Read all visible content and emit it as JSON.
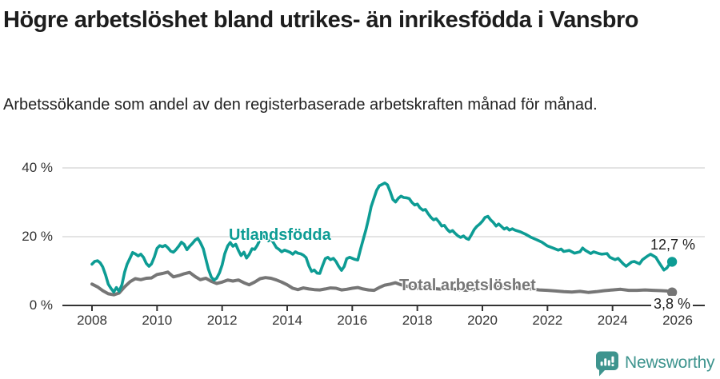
{
  "header": {
    "title": "Högre arbetslöshet bland utrikes- än inrikesfödda i Vansbro",
    "subtitle": "Arbetssökande som andel av den registerbaserade arbetskraften månad för månad."
  },
  "footer": {
    "brand": "Newsworthy",
    "logo_icon": "newsworthy-speech-bubble-bar-chart-icon",
    "brand_color": "#3e948e"
  },
  "colors": {
    "foreign_born_line": "#0d9c94",
    "total_line": "#767676",
    "grid": "#dcdcdc",
    "axis": "#333333",
    "title_text": "#1d1d1d",
    "tick_text": "#333333"
  },
  "chart_data": {
    "type": "line",
    "title": "Högre arbetslöshet bland utrikes- än inrikesfödda i Vansbro",
    "subtitle": "Arbetssökande som andel av den registerbaserade arbetskraften månad för månad.",
    "xlabel": "",
    "ylabel": "",
    "grid": "horizontal-only",
    "xlim": [
      2007.1,
      2026.8
    ],
    "ylim": [
      0,
      43
    ],
    "y_ticks": [
      0,
      20,
      40
    ],
    "y_tick_labels": [
      "0 %",
      "20 %",
      "40 %"
    ],
    "x_ticks": [
      2008,
      2010,
      2012,
      2014,
      2016,
      2018,
      2020,
      2022,
      2024,
      2026
    ],
    "x_tick_labels": [
      "2008",
      "2010",
      "2012",
      "2014",
      "2016",
      "2018",
      "2020",
      "2022",
      "2024",
      "2026"
    ],
    "legend_position": "inline-labels-on-lines",
    "series": [
      {
        "name": "Utlandsfödda",
        "color": "#0d9c94",
        "end_label": "12,7 %",
        "end_value": 12.7,
        "points": [
          [
            2008.0,
            12.0
          ],
          [
            2008.08,
            12.8
          ],
          [
            2008.17,
            13.0
          ],
          [
            2008.25,
            12.4
          ],
          [
            2008.33,
            11.2
          ],
          [
            2008.42,
            8.8
          ],
          [
            2008.5,
            6.2
          ],
          [
            2008.58,
            5.0
          ],
          [
            2008.67,
            3.9
          ],
          [
            2008.75,
            5.2
          ],
          [
            2008.83,
            4.1
          ],
          [
            2008.92,
            6.0
          ],
          [
            2009.0,
            9.6
          ],
          [
            2009.08,
            12.0
          ],
          [
            2009.17,
            13.8
          ],
          [
            2009.25,
            15.4
          ],
          [
            2009.33,
            15.0
          ],
          [
            2009.42,
            14.4
          ],
          [
            2009.5,
            14.9
          ],
          [
            2009.58,
            14.0
          ],
          [
            2009.67,
            12.2
          ],
          [
            2009.75,
            11.4
          ],
          [
            2009.83,
            12.1
          ],
          [
            2009.92,
            14.2
          ],
          [
            2010.0,
            16.6
          ],
          [
            2010.08,
            17.4
          ],
          [
            2010.17,
            17.1
          ],
          [
            2010.25,
            17.5
          ],
          [
            2010.33,
            16.8
          ],
          [
            2010.42,
            15.8
          ],
          [
            2010.5,
            15.5
          ],
          [
            2010.58,
            16.2
          ],
          [
            2010.67,
            17.3
          ],
          [
            2010.75,
            18.4
          ],
          [
            2010.83,
            17.8
          ],
          [
            2010.92,
            16.2
          ],
          [
            2011.0,
            17.2
          ],
          [
            2011.08,
            18.0
          ],
          [
            2011.17,
            19.0
          ],
          [
            2011.25,
            19.5
          ],
          [
            2011.33,
            18.3
          ],
          [
            2011.42,
            16.5
          ],
          [
            2011.5,
            13.5
          ],
          [
            2011.58,
            10.5
          ],
          [
            2011.67,
            8.2
          ],
          [
            2011.75,
            7.4
          ],
          [
            2011.83,
            7.9
          ],
          [
            2011.92,
            9.5
          ],
          [
            2012.0,
            11.8
          ],
          [
            2012.08,
            15.0
          ],
          [
            2012.17,
            17.3
          ],
          [
            2012.25,
            18.3
          ],
          [
            2012.33,
            17.2
          ],
          [
            2012.42,
            17.8
          ],
          [
            2012.5,
            16.0
          ],
          [
            2012.58,
            14.5
          ],
          [
            2012.67,
            15.5
          ],
          [
            2012.75,
            13.8
          ],
          [
            2012.83,
            14.8
          ],
          [
            2012.92,
            16.5
          ],
          [
            2013.0,
            16.3
          ],
          [
            2013.08,
            17.5
          ],
          [
            2013.17,
            19.2
          ],
          [
            2013.25,
            20.3
          ],
          [
            2013.33,
            19.6
          ],
          [
            2013.42,
            18.8
          ],
          [
            2013.5,
            19.4
          ],
          [
            2013.58,
            18.2
          ],
          [
            2013.67,
            16.8
          ],
          [
            2013.75,
            16.3
          ],
          [
            2013.83,
            15.6
          ],
          [
            2013.92,
            16.1
          ],
          [
            2014.0,
            15.8
          ],
          [
            2014.08,
            15.5
          ],
          [
            2014.17,
            14.9
          ],
          [
            2014.25,
            15.6
          ],
          [
            2014.33,
            15.2
          ],
          [
            2014.42,
            15.0
          ],
          [
            2014.5,
            14.6
          ],
          [
            2014.58,
            13.9
          ],
          [
            2014.67,
            11.5
          ],
          [
            2014.75,
            9.9
          ],
          [
            2014.83,
            10.3
          ],
          [
            2014.92,
            9.4
          ],
          [
            2015.0,
            9.3
          ],
          [
            2015.08,
            11.4
          ],
          [
            2015.17,
            13.6
          ],
          [
            2015.25,
            14.0
          ],
          [
            2015.33,
            13.3
          ],
          [
            2015.42,
            13.7
          ],
          [
            2015.5,
            12.8
          ],
          [
            2015.58,
            11.4
          ],
          [
            2015.67,
            10.2
          ],
          [
            2015.75,
            11.3
          ],
          [
            2015.83,
            13.6
          ],
          [
            2015.92,
            14.0
          ],
          [
            2016.0,
            13.7
          ],
          [
            2016.08,
            13.4
          ],
          [
            2016.17,
            13.2
          ],
          [
            2016.25,
            16.2
          ],
          [
            2016.33,
            19.0
          ],
          [
            2016.42,
            22.0
          ],
          [
            2016.5,
            25.2
          ],
          [
            2016.58,
            28.7
          ],
          [
            2016.67,
            31.3
          ],
          [
            2016.75,
            33.5
          ],
          [
            2016.83,
            34.8
          ],
          [
            2016.92,
            35.2
          ],
          [
            2017.0,
            35.6
          ],
          [
            2017.08,
            35.1
          ],
          [
            2017.17,
            33.0
          ],
          [
            2017.25,
            30.8
          ],
          [
            2017.33,
            30.1
          ],
          [
            2017.42,
            31.2
          ],
          [
            2017.5,
            31.8
          ],
          [
            2017.58,
            31.4
          ],
          [
            2017.67,
            31.3
          ],
          [
            2017.75,
            31.1
          ],
          [
            2017.83,
            30.0
          ],
          [
            2017.92,
            29.2
          ],
          [
            2018.0,
            29.5
          ],
          [
            2018.08,
            28.4
          ],
          [
            2018.17,
            27.7
          ],
          [
            2018.25,
            27.9
          ],
          [
            2018.33,
            26.7
          ],
          [
            2018.42,
            25.6
          ],
          [
            2018.5,
            24.9
          ],
          [
            2018.58,
            25.2
          ],
          [
            2018.67,
            24.2
          ],
          [
            2018.75,
            23.1
          ],
          [
            2018.83,
            23.3
          ],
          [
            2018.92,
            22.1
          ],
          [
            2019.0,
            21.4
          ],
          [
            2019.08,
            21.8
          ],
          [
            2019.17,
            20.9
          ],
          [
            2019.25,
            20.2
          ],
          [
            2019.33,
            19.8
          ],
          [
            2019.42,
            20.2
          ],
          [
            2019.5,
            19.5
          ],
          [
            2019.58,
            19.2
          ],
          [
            2019.67,
            20.7
          ],
          [
            2019.75,
            22.1
          ],
          [
            2019.83,
            23.0
          ],
          [
            2019.92,
            23.7
          ],
          [
            2020.0,
            24.5
          ],
          [
            2020.08,
            25.6
          ],
          [
            2020.17,
            25.9
          ],
          [
            2020.25,
            24.9
          ],
          [
            2020.33,
            24.2
          ],
          [
            2020.42,
            23.1
          ],
          [
            2020.5,
            23.7
          ],
          [
            2020.58,
            23.0
          ],
          [
            2020.67,
            22.2
          ],
          [
            2020.75,
            22.6
          ],
          [
            2020.83,
            21.9
          ],
          [
            2020.92,
            22.3
          ],
          [
            2021.0,
            21.9
          ],
          [
            2021.17,
            21.4
          ],
          [
            2021.33,
            20.7
          ],
          [
            2021.5,
            19.8
          ],
          [
            2021.67,
            19.1
          ],
          [
            2021.83,
            18.4
          ],
          [
            2022.0,
            17.3
          ],
          [
            2022.17,
            16.7
          ],
          [
            2022.33,
            16.1
          ],
          [
            2022.42,
            16.4
          ],
          [
            2022.5,
            15.7
          ],
          [
            2022.67,
            16.0
          ],
          [
            2022.83,
            15.2
          ],
          [
            2023.0,
            15.6
          ],
          [
            2023.08,
            16.7
          ],
          [
            2023.17,
            16.0
          ],
          [
            2023.33,
            15.1
          ],
          [
            2023.42,
            15.6
          ],
          [
            2023.58,
            15.1
          ],
          [
            2023.67,
            14.9
          ],
          [
            2023.83,
            15.1
          ],
          [
            2023.92,
            14.0
          ],
          [
            2024.08,
            13.3
          ],
          [
            2024.17,
            13.7
          ],
          [
            2024.33,
            12.1
          ],
          [
            2024.42,
            11.4
          ],
          [
            2024.58,
            12.6
          ],
          [
            2024.67,
            12.8
          ],
          [
            2024.83,
            12.1
          ],
          [
            2024.92,
            13.3
          ],
          [
            2025.08,
            14.4
          ],
          [
            2025.17,
            14.9
          ],
          [
            2025.33,
            14.0
          ],
          [
            2025.42,
            12.6
          ],
          [
            2025.58,
            10.3
          ],
          [
            2025.67,
            10.9
          ],
          [
            2025.75,
            12.0
          ],
          [
            2025.83,
            12.7
          ]
        ]
      },
      {
        "name": "Total arbetslöshet",
        "color": "#767676",
        "end_label": "3,8 %",
        "end_value": 3.8,
        "points": [
          [
            2008.0,
            6.2
          ],
          [
            2008.17,
            5.4
          ],
          [
            2008.33,
            4.3
          ],
          [
            2008.5,
            3.4
          ],
          [
            2008.67,
            3.1
          ],
          [
            2008.83,
            3.6
          ],
          [
            2009.0,
            5.4
          ],
          [
            2009.17,
            6.9
          ],
          [
            2009.33,
            7.8
          ],
          [
            2009.5,
            7.5
          ],
          [
            2009.67,
            7.9
          ],
          [
            2009.83,
            8.0
          ],
          [
            2010.0,
            9.0
          ],
          [
            2010.17,
            9.3
          ],
          [
            2010.33,
            9.7
          ],
          [
            2010.5,
            8.3
          ],
          [
            2010.67,
            8.7
          ],
          [
            2010.83,
            9.2
          ],
          [
            2011.0,
            9.6
          ],
          [
            2011.17,
            8.4
          ],
          [
            2011.33,
            7.5
          ],
          [
            2011.5,
            7.9
          ],
          [
            2011.67,
            7.0
          ],
          [
            2011.83,
            6.4
          ],
          [
            2012.0,
            6.8
          ],
          [
            2012.17,
            7.4
          ],
          [
            2012.33,
            7.1
          ],
          [
            2012.5,
            7.4
          ],
          [
            2012.67,
            6.6
          ],
          [
            2012.83,
            6.0
          ],
          [
            2013.0,
            6.8
          ],
          [
            2013.17,
            7.8
          ],
          [
            2013.33,
            8.1
          ],
          [
            2013.5,
            7.9
          ],
          [
            2013.67,
            7.4
          ],
          [
            2013.83,
            6.8
          ],
          [
            2014.0,
            6.0
          ],
          [
            2014.17,
            5.0
          ],
          [
            2014.33,
            4.6
          ],
          [
            2014.5,
            5.1
          ],
          [
            2014.67,
            4.8
          ],
          [
            2014.83,
            4.6
          ],
          [
            2015.0,
            4.5
          ],
          [
            2015.17,
            4.8
          ],
          [
            2015.33,
            5.1
          ],
          [
            2015.5,
            5.0
          ],
          [
            2015.67,
            4.5
          ],
          [
            2015.83,
            4.7
          ],
          [
            2016.0,
            5.0
          ],
          [
            2016.17,
            5.2
          ],
          [
            2016.33,
            4.8
          ],
          [
            2016.5,
            4.5
          ],
          [
            2016.67,
            4.4
          ],
          [
            2016.83,
            5.2
          ],
          [
            2017.0,
            5.9
          ],
          [
            2017.17,
            6.2
          ],
          [
            2017.33,
            6.6
          ],
          [
            2017.5,
            6.0
          ],
          [
            2017.67,
            5.6
          ],
          [
            2017.83,
            5.2
          ],
          [
            2018.0,
            5.0
          ],
          [
            2018.25,
            5.3
          ],
          [
            2018.5,
            4.9
          ],
          [
            2018.75,
            4.7
          ],
          [
            2019.0,
            4.9
          ],
          [
            2019.25,
            4.6
          ],
          [
            2019.5,
            4.4
          ],
          [
            2019.75,
            4.6
          ],
          [
            2020.0,
            5.0
          ],
          [
            2020.25,
            5.6
          ],
          [
            2020.5,
            5.3
          ],
          [
            2020.75,
            5.1
          ],
          [
            2021.0,
            5.3
          ],
          [
            2021.25,
            5.0
          ],
          [
            2021.5,
            4.8
          ],
          [
            2021.75,
            4.5
          ],
          [
            2022.0,
            4.4
          ],
          [
            2022.25,
            4.2
          ],
          [
            2022.5,
            4.0
          ],
          [
            2022.75,
            3.9
          ],
          [
            2023.0,
            4.1
          ],
          [
            2023.25,
            3.8
          ],
          [
            2023.5,
            4.0
          ],
          [
            2023.75,
            4.3
          ],
          [
            2024.0,
            4.5
          ],
          [
            2024.25,
            4.7
          ],
          [
            2024.5,
            4.4
          ],
          [
            2024.75,
            4.4
          ],
          [
            2025.0,
            4.5
          ],
          [
            2025.25,
            4.4
          ],
          [
            2025.5,
            4.3
          ],
          [
            2025.67,
            4.2
          ],
          [
            2025.83,
            3.8
          ]
        ]
      }
    ]
  }
}
